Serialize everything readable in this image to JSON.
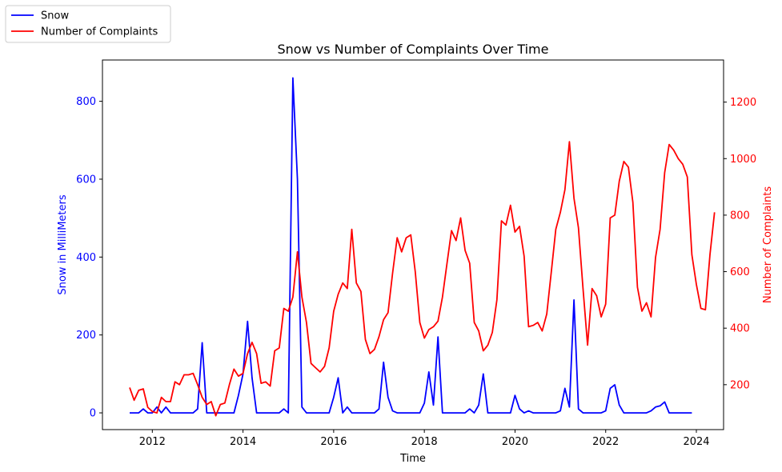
{
  "chart_data": {
    "type": "line",
    "title": "Snow vs Number of Complaints Over Time",
    "xlabel": "Time",
    "ylabel_left": "Snow in MilliMeters",
    "ylabel_right": "Number of Complaints",
    "xlim": [
      2010.9,
      2024.6
    ],
    "ylim_left": [
      -43,
      906
    ],
    "ylim_right": [
      41,
      1349
    ],
    "x_ticks": [
      2012,
      2014,
      2016,
      2018,
      2020,
      2022,
      2024
    ],
    "x_tick_labels": [
      "2012",
      "2014",
      "2016",
      "2018",
      "2020",
      "2022",
      "2024"
    ],
    "y_ticks_left": [
      0,
      200,
      400,
      600,
      800
    ],
    "y_tick_labels_left": [
      "0",
      "200",
      "400",
      "600",
      "800"
    ],
    "y_ticks_right": [
      200,
      400,
      600,
      800,
      1000,
      1200
    ],
    "y_tick_labels_right": [
      "200",
      "400",
      "600",
      "800",
      "1000",
      "1200"
    ],
    "grid": false,
    "legend": {
      "placement": "top-left, outside plot area",
      "entries": [
        "Snow",
        "Number of Complaints"
      ]
    },
    "colors": {
      "snow": "#0000ff",
      "complaints": "#ff0000",
      "axes": "#000000"
    },
    "series": [
      {
        "name": "Snow",
        "axis": "left",
        "points": [
          [
            2011.5,
            0
          ],
          [
            2011.6,
            0
          ],
          [
            2011.7,
            0
          ],
          [
            2011.8,
            10
          ],
          [
            2011.9,
            0
          ],
          [
            2012.0,
            0
          ],
          [
            2012.1,
            15
          ],
          [
            2012.2,
            0
          ],
          [
            2012.3,
            15
          ],
          [
            2012.4,
            0
          ],
          [
            2012.5,
            0
          ],
          [
            2012.9,
            0
          ],
          [
            2013.0,
            10
          ],
          [
            2013.1,
            180
          ],
          [
            2013.2,
            0
          ],
          [
            2013.8,
            0
          ],
          [
            2013.9,
            45
          ],
          [
            2014.0,
            100
          ],
          [
            2014.1,
            235
          ],
          [
            2014.2,
            90
          ],
          [
            2014.3,
            0
          ],
          [
            2014.8,
            0
          ],
          [
            2014.9,
            10
          ],
          [
            2015.0,
            0
          ],
          [
            2015.1,
            860
          ],
          [
            2015.2,
            600
          ],
          [
            2015.3,
            15
          ],
          [
            2015.4,
            0
          ],
          [
            2015.9,
            0
          ],
          [
            2016.0,
            40
          ],
          [
            2016.1,
            90
          ],
          [
            2016.2,
            0
          ],
          [
            2016.3,
            15
          ],
          [
            2016.4,
            0
          ],
          [
            2016.9,
            0
          ],
          [
            2017.0,
            10
          ],
          [
            2017.1,
            130
          ],
          [
            2017.2,
            40
          ],
          [
            2017.3,
            5
          ],
          [
            2017.4,
            0
          ],
          [
            2017.9,
            0
          ],
          [
            2018.0,
            25
          ],
          [
            2018.1,
            105
          ],
          [
            2018.2,
            20
          ],
          [
            2018.3,
            195
          ],
          [
            2018.4,
            0
          ],
          [
            2018.9,
            0
          ],
          [
            2019.0,
            10
          ],
          [
            2019.1,
            0
          ],
          [
            2019.2,
            20
          ],
          [
            2019.3,
            100
          ],
          [
            2019.4,
            0
          ],
          [
            2019.9,
            0
          ],
          [
            2020.0,
            45
          ],
          [
            2020.1,
            10
          ],
          [
            2020.2,
            0
          ],
          [
            2020.3,
            5
          ],
          [
            2020.4,
            0
          ],
          [
            2020.9,
            0
          ],
          [
            2021.0,
            5
          ],
          [
            2021.1,
            63
          ],
          [
            2021.2,
            15
          ],
          [
            2021.3,
            290
          ],
          [
            2021.4,
            10
          ],
          [
            2021.5,
            0
          ],
          [
            2021.9,
            0
          ],
          [
            2022.0,
            5
          ],
          [
            2022.1,
            63
          ],
          [
            2022.2,
            72
          ],
          [
            2022.3,
            20
          ],
          [
            2022.4,
            0
          ],
          [
            2022.9,
            0
          ],
          [
            2023.0,
            5
          ],
          [
            2023.1,
            15
          ],
          [
            2023.2,
            18
          ],
          [
            2023.3,
            28
          ],
          [
            2023.4,
            0
          ],
          [
            2023.9,
            0
          ]
        ]
      },
      {
        "name": "Number of Complaints",
        "axis": "right",
        "points": [
          [
            2011.5,
            190
          ],
          [
            2011.6,
            145
          ],
          [
            2011.7,
            180
          ],
          [
            2011.8,
            185
          ],
          [
            2011.9,
            120
          ],
          [
            2012.0,
            105
          ],
          [
            2012.1,
            100
          ],
          [
            2012.2,
            155
          ],
          [
            2012.3,
            140
          ],
          [
            2012.4,
            140
          ],
          [
            2012.5,
            210
          ],
          [
            2012.6,
            200
          ],
          [
            2012.7,
            235
          ],
          [
            2012.8,
            235
          ],
          [
            2012.9,
            240
          ],
          [
            2013.0,
            200
          ],
          [
            2013.1,
            155
          ],
          [
            2013.2,
            130
          ],
          [
            2013.3,
            140
          ],
          [
            2013.4,
            90
          ],
          [
            2013.5,
            130
          ],
          [
            2013.6,
            135
          ],
          [
            2013.7,
            200
          ],
          [
            2013.8,
            255
          ],
          [
            2013.9,
            230
          ],
          [
            2014.0,
            240
          ],
          [
            2014.1,
            310
          ],
          [
            2014.2,
            350
          ],
          [
            2014.3,
            310
          ],
          [
            2014.4,
            205
          ],
          [
            2014.5,
            210
          ],
          [
            2014.6,
            195
          ],
          [
            2014.7,
            320
          ],
          [
            2014.8,
            330
          ],
          [
            2014.9,
            470
          ],
          [
            2015.0,
            460
          ],
          [
            2015.1,
            510
          ],
          [
            2015.2,
            670
          ],
          [
            2015.3,
            510
          ],
          [
            2015.4,
            420
          ],
          [
            2015.5,
            275
          ],
          [
            2015.6,
            260
          ],
          [
            2015.7,
            245
          ],
          [
            2015.8,
            265
          ],
          [
            2015.9,
            330
          ],
          [
            2016.0,
            460
          ],
          [
            2016.1,
            520
          ],
          [
            2016.2,
            560
          ],
          [
            2016.3,
            540
          ],
          [
            2016.4,
            750
          ],
          [
            2016.5,
            560
          ],
          [
            2016.6,
            530
          ],
          [
            2016.7,
            360
          ],
          [
            2016.8,
            310
          ],
          [
            2016.9,
            325
          ],
          [
            2017.0,
            370
          ],
          [
            2017.1,
            430
          ],
          [
            2017.2,
            455
          ],
          [
            2017.3,
            595
          ],
          [
            2017.4,
            720
          ],
          [
            2017.5,
            670
          ],
          [
            2017.6,
            720
          ],
          [
            2017.7,
            730
          ],
          [
            2017.8,
            600
          ],
          [
            2017.9,
            420
          ],
          [
            2018.0,
            365
          ],
          [
            2018.1,
            395
          ],
          [
            2018.2,
            405
          ],
          [
            2018.3,
            425
          ],
          [
            2018.4,
            510
          ],
          [
            2018.5,
            630
          ],
          [
            2018.6,
            745
          ],
          [
            2018.7,
            710
          ],
          [
            2018.8,
            790
          ],
          [
            2018.9,
            675
          ],
          [
            2019.0,
            630
          ],
          [
            2019.1,
            420
          ],
          [
            2019.2,
            390
          ],
          [
            2019.3,
            320
          ],
          [
            2019.4,
            340
          ],
          [
            2019.5,
            385
          ],
          [
            2019.6,
            500
          ],
          [
            2019.7,
            780
          ],
          [
            2019.8,
            765
          ],
          [
            2019.9,
            835
          ],
          [
            2020.0,
            740
          ],
          [
            2020.1,
            760
          ],
          [
            2020.2,
            655
          ],
          [
            2020.3,
            405
          ],
          [
            2020.4,
            410
          ],
          [
            2020.5,
            420
          ],
          [
            2020.6,
            390
          ],
          [
            2020.7,
            450
          ],
          [
            2020.8,
            600
          ],
          [
            2020.9,
            750
          ],
          [
            2021.0,
            810
          ],
          [
            2021.1,
            890
          ],
          [
            2021.2,
            1060
          ],
          [
            2021.3,
            860
          ],
          [
            2021.4,
            755
          ],
          [
            2021.5,
            540
          ],
          [
            2021.6,
            340
          ],
          [
            2021.7,
            540
          ],
          [
            2021.8,
            515
          ],
          [
            2021.9,
            440
          ],
          [
            2022.0,
            485
          ],
          [
            2022.1,
            790
          ],
          [
            2022.2,
            800
          ],
          [
            2022.3,
            920
          ],
          [
            2022.4,
            990
          ],
          [
            2022.5,
            970
          ],
          [
            2022.6,
            845
          ],
          [
            2022.7,
            545
          ],
          [
            2022.8,
            460
          ],
          [
            2022.9,
            490
          ],
          [
            2023.0,
            440
          ],
          [
            2023.1,
            650
          ],
          [
            2023.2,
            750
          ],
          [
            2023.3,
            950
          ],
          [
            2023.4,
            1050
          ],
          [
            2023.5,
            1030
          ],
          [
            2023.6,
            1000
          ],
          [
            2023.7,
            980
          ],
          [
            2023.8,
            935
          ],
          [
            2023.9,
            660
          ],
          [
            2024.0,
            555
          ],
          [
            2024.1,
            470
          ],
          [
            2024.2,
            465
          ],
          [
            2024.3,
            660
          ],
          [
            2024.4,
            810
          ]
        ]
      }
    ]
  }
}
